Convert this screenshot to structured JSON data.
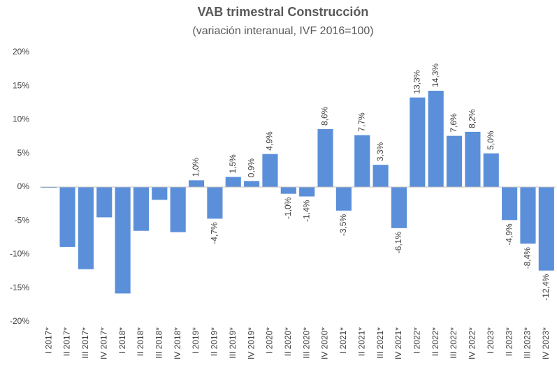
{
  "chart_data": {
    "type": "bar",
    "title": "VAB trimestral Construcción",
    "subtitle": "(variación interanual, IVF 2016=100)",
    "categories": [
      "I 2017*",
      "II 2017*",
      "III 2017*",
      "IV 2017*",
      "I 2018*",
      "II 2018*",
      "III 2018*",
      "IV 2018*",
      "I 2019*",
      "II 2019*",
      "III 2019*",
      "IV 2019*",
      "I 2020*",
      "II 2020*",
      "III 2020*",
      "IV 2020*",
      "I 2021*",
      "II 2021*",
      "III 2021*",
      "IV 2021*",
      "I 2022*",
      "II 2022*",
      "III 2022*",
      "IV 2022*",
      "I 2023*",
      "II 2023*",
      "III 2023*",
      "IV 2023*"
    ],
    "values": [
      -0.1,
      -8.9,
      -12.2,
      -4.5,
      -15.8,
      -6.5,
      -1.9,
      -6.7,
      1.0,
      -4.7,
      1.5,
      0.9,
      4.9,
      -1.0,
      -1.4,
      8.6,
      -3.5,
      7.7,
      3.3,
      -6.1,
      13.3,
      14.3,
      7.6,
      8.2,
      5.0,
      -4.9,
      -8.4,
      -12.4
    ],
    "value_labels": [
      null,
      null,
      null,
      null,
      null,
      null,
      null,
      null,
      "1,0%",
      "-4,7%",
      "1,5%",
      "0,9%",
      "4,9%",
      "-1,0%",
      "-1,4%",
      "8,6%",
      "-3,5%",
      "7,7%",
      "3,3%",
      "-6,1%",
      "13,3%",
      "14,3%",
      "7,6%",
      "8,2%",
      "5,0%",
      "-4,9%",
      "-8,4%",
      "-12,4%"
    ],
    "color": "#5b8fd9",
    "ylim": [
      -20,
      20
    ],
    "yticks": [
      {
        "value": -20,
        "label": "-20%"
      },
      {
        "value": -15,
        "label": "-15%"
      },
      {
        "value": -10,
        "label": "-10%"
      },
      {
        "value": -5,
        "label": "-5%"
      },
      {
        "value": 0,
        "label": "0%"
      },
      {
        "value": 5,
        "label": "5%"
      },
      {
        "value": 10,
        "label": "10%"
      },
      {
        "value": 15,
        "label": "15%"
      },
      {
        "value": 20,
        "label": "20%"
      }
    ],
    "grid": false
  }
}
